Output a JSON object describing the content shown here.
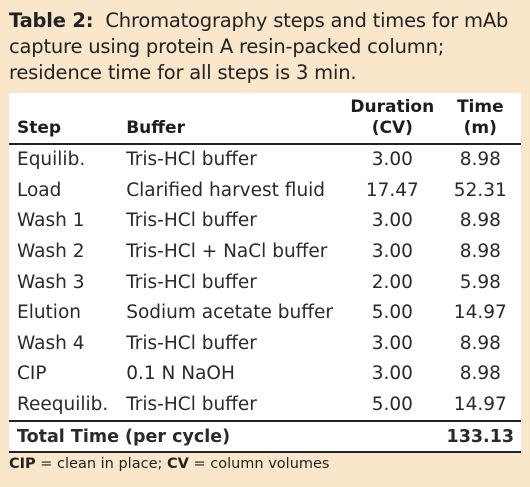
{
  "caption": {
    "label": "Table 2:",
    "text": "Chromatography steps and times for mAb capture using protein A resin-packed column; residence time for all steps is 3 min."
  },
  "headers": {
    "step": "Step",
    "buffer": "Buffer",
    "duration_line1": "Duration",
    "duration_line2": "(CV)",
    "time_line1": "Time",
    "time_line2": "(m)"
  },
  "rows": [
    {
      "step": "Equilib.",
      "buffer": "Tris-HCl buffer",
      "duration": "3.00",
      "time": "8.98"
    },
    {
      "step": "Load",
      "buffer": "Clarified harvest fluid",
      "duration": "17.47",
      "time": "52.31"
    },
    {
      "step": "Wash 1",
      "buffer": "Tris-HCl buffer",
      "duration": "3.00",
      "time": "8.98"
    },
    {
      "step": "Wash 2",
      "buffer": "Tris-HCl + NaCl buffer",
      "duration": "3.00",
      "time": "8.98"
    },
    {
      "step": "Wash 3",
      "buffer": "Tris-HCl buffer",
      "duration": "2.00",
      "time": "5.98"
    },
    {
      "step": "Elution",
      "buffer": "Sodium acetate buffer",
      "duration": "5.00",
      "time": "14.97"
    },
    {
      "step": "Wash 4",
      "buffer": "Tris-HCl buffer",
      "duration": "3.00",
      "time": "8.98"
    },
    {
      "step": "CIP",
      "buffer": "0.1 N NaOH",
      "duration": "3.00",
      "time": "8.98"
    },
    {
      "step": "Reequilib.",
      "buffer": "Tris-HCl buffer",
      "duration": "5.00",
      "time": "14.97"
    }
  ],
  "total": {
    "label": "Total Time (per cycle)",
    "value": "133.13"
  },
  "footnote": {
    "abbr1": "CIP",
    "def1": " = clean in place; ",
    "abbr2": "CV",
    "def2": " = column volumes"
  },
  "colors": {
    "panel_background": "#fae6ca",
    "table_background": "#ffffff",
    "rule": "#222222"
  }
}
